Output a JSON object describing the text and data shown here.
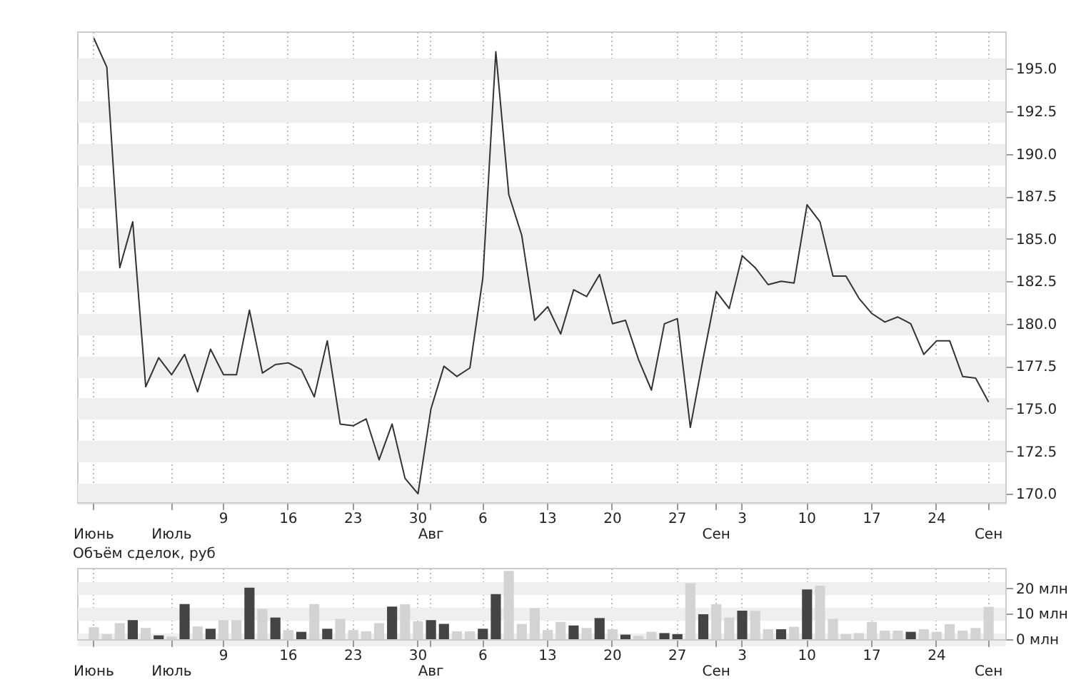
{
  "chart_data": [
    {
      "type": "line",
      "color": "#333333",
      "grid": true,
      "categories": [
        "Июнь",
        null,
        null,
        null,
        null,
        null,
        "Июль",
        null,
        null,
        null,
        "9",
        null,
        null,
        null,
        null,
        "16",
        null,
        null,
        null,
        null,
        "23",
        null,
        null,
        null,
        null,
        "30",
        "Авг",
        null,
        null,
        null,
        "6",
        null,
        null,
        null,
        null,
        "13",
        null,
        null,
        null,
        null,
        "20",
        null,
        null,
        null,
        null,
        "27",
        null,
        null,
        "Сен",
        null,
        "3",
        null,
        null,
        null,
        null,
        "10",
        null,
        null,
        null,
        null,
        "17",
        null,
        null,
        null,
        null,
        "24",
        null,
        null,
        null,
        "Сен"
      ],
      "values": [
        196.8,
        195.1,
        183.3,
        186.0,
        176.3,
        178.0,
        177.0,
        178.2,
        176.0,
        178.5,
        177.0,
        177.0,
        180.8,
        177.1,
        177.6,
        177.7,
        177.3,
        175.7,
        179.0,
        174.1,
        174.0,
        174.4,
        172.0,
        174.1,
        170.9,
        170.0,
        175.0,
        177.5,
        176.9,
        177.4,
        182.7,
        196.0,
        187.6,
        185.2,
        180.2,
        181.0,
        179.4,
        182.0,
        181.6,
        182.9,
        180.0,
        180.2,
        177.9,
        176.1,
        180.0,
        180.3,
        173.9,
        178.0,
        181.9,
        180.9,
        184.0,
        183.3,
        182.3,
        182.5,
        182.4,
        187.0,
        186.0,
        182.8,
        182.8,
        181.5,
        180.6,
        180.1,
        180.4,
        180.0,
        178.2,
        179.0,
        179.0,
        176.9,
        176.8,
        175.4
      ],
      "ylim": [
        169.5,
        197.2
      ],
      "yticks": [
        {
          "value": 170,
          "label": "170.0"
        },
        {
          "value": 172.5,
          "label": "172.5"
        },
        {
          "value": 175,
          "label": "175.0"
        },
        {
          "value": 177.5,
          "label": "177.5"
        },
        {
          "value": 180,
          "label": "180.0"
        },
        {
          "value": 182.5,
          "label": "182.5"
        },
        {
          "value": 185,
          "label": "185.0"
        },
        {
          "value": 187.5,
          "label": "187.5"
        },
        {
          "value": 190,
          "label": "190.0"
        },
        {
          "value": 192.5,
          "label": "192.5"
        },
        {
          "value": 195,
          "label": "195.0"
        }
      ]
    },
    {
      "type": "bar",
      "title": "Объём сделок, руб",
      "grid": true,
      "categories": [
        "Июнь",
        null,
        null,
        null,
        null,
        null,
        "Июль",
        null,
        null,
        null,
        "9",
        null,
        null,
        null,
        null,
        "16",
        null,
        null,
        null,
        null,
        "23",
        null,
        null,
        null,
        null,
        "30",
        "Авг",
        null,
        null,
        null,
        "6",
        null,
        null,
        null,
        null,
        "13",
        null,
        null,
        null,
        null,
        "20",
        null,
        null,
        null,
        null,
        "27",
        null,
        null,
        "Сен",
        null,
        "3",
        null,
        null,
        null,
        null,
        "10",
        null,
        null,
        null,
        null,
        "17",
        null,
        null,
        null,
        null,
        "24",
        null,
        null,
        null,
        "Сен"
      ],
      "values": [
        4.7,
        2.0,
        6.3,
        7.5,
        4.4,
        1.5,
        1.0,
        13.8,
        5.0,
        4.1,
        7.5,
        7.5,
        20.2,
        11.9,
        8.5,
        3.6,
        2.9,
        13.8,
        4.1,
        8.0,
        3.6,
        3.1,
        6.3,
        12.8,
        13.7,
        7.0,
        7.5,
        6.0,
        3.1,
        3.1,
        4.1,
        17.7,
        26.8,
        6.0,
        12.2,
        3.6,
        6.8,
        5.4,
        4.4,
        8.3,
        3.9,
        1.8,
        1.3,
        2.9,
        2.4,
        2.0,
        22.0,
        9.8,
        13.7,
        8.5,
        11.2,
        11.1,
        3.9,
        3.9,
        4.9,
        19.5,
        21.0,
        8.0,
        2.0,
        2.4,
        6.8,
        3.4,
        3.4,
        2.9,
        3.9,
        2.9,
        5.9,
        3.4,
        4.4,
        12.7
      ],
      "colors": [
        "#d3d3d3",
        "#d3d3d3",
        "#d3d3d3",
        "#444444",
        "#d3d3d3",
        "#444444",
        "#d3d3d3",
        "#444444",
        "#d3d3d3",
        "#444444",
        "#d3d3d3",
        "#d3d3d3",
        "#444444",
        "#d3d3d3",
        "#444444",
        "#d3d3d3",
        "#444444",
        "#d3d3d3",
        "#444444",
        "#d3d3d3",
        "#d3d3d3",
        "#d3d3d3",
        "#d3d3d3",
        "#444444",
        "#d3d3d3",
        "#d3d3d3",
        "#444444",
        "#444444",
        "#d3d3d3",
        "#d3d3d3",
        "#444444",
        "#444444",
        "#d3d3d3",
        "#d3d3d3",
        "#d3d3d3",
        "#d3d3d3",
        "#d3d3d3",
        "#444444",
        "#d3d3d3",
        "#444444",
        "#d3d3d3",
        "#444444",
        "#d3d3d3",
        "#d3d3d3",
        "#444444",
        "#444444",
        "#d3d3d3",
        "#444444",
        "#d3d3d3",
        "#d3d3d3",
        "#444444",
        "#d3d3d3",
        "#d3d3d3",
        "#444444",
        "#d3d3d3",
        "#444444",
        "#d3d3d3",
        "#d3d3d3",
        "#d3d3d3",
        "#d3d3d3",
        "#d3d3d3",
        "#d3d3d3",
        "#d3d3d3",
        "#444444",
        "#d3d3d3",
        "#d3d3d3",
        "#d3d3d3",
        "#d3d3d3",
        "#d3d3d3",
        "#d3d3d3"
      ],
      "ylim": [
        0,
        28
      ],
      "yticks": [
        {
          "value": 0,
          "label": "0 млн"
        },
        {
          "value": 10,
          "label": "10 млн"
        },
        {
          "value": 20,
          "label": "20 млн"
        }
      ]
    }
  ]
}
